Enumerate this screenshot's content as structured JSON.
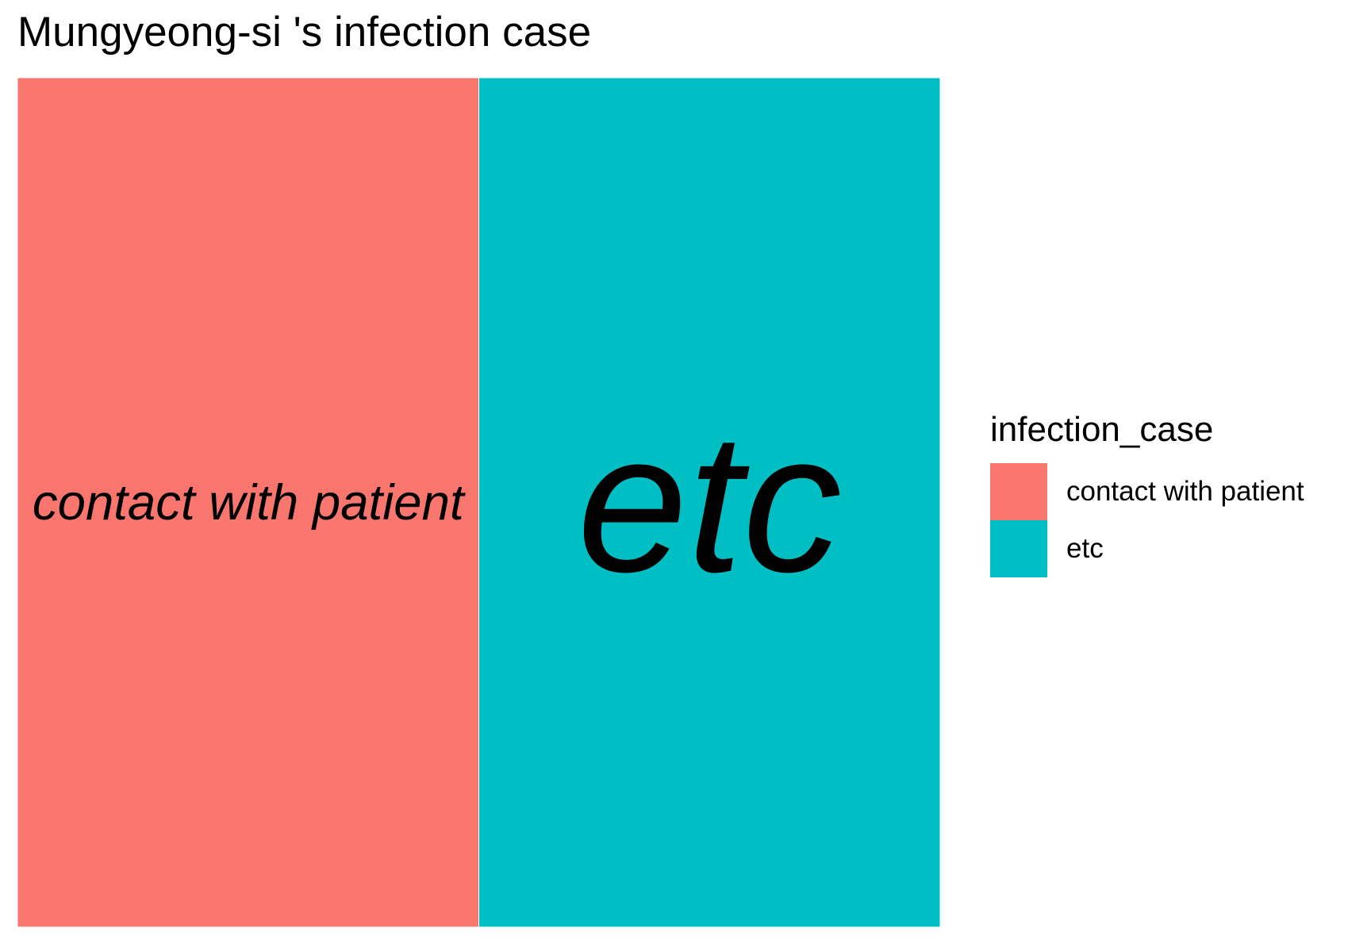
{
  "title": "Mungyeong-si 's infection case",
  "chart_data": {
    "type": "treemap",
    "title": "Mungyeong-si 's infection case",
    "categories": [
      "contact with patient",
      "etc"
    ],
    "values": [
      1,
      1
    ],
    "colors": [
      "#F8766D",
      "#00BFC4"
    ],
    "labels_italic": true,
    "legend": {
      "title": "infection_case",
      "position": "right",
      "entries": [
        {
          "label": "contact with patient",
          "color": "#F8766D"
        },
        {
          "label": "etc",
          "color": "#00BFC4"
        }
      ]
    }
  }
}
